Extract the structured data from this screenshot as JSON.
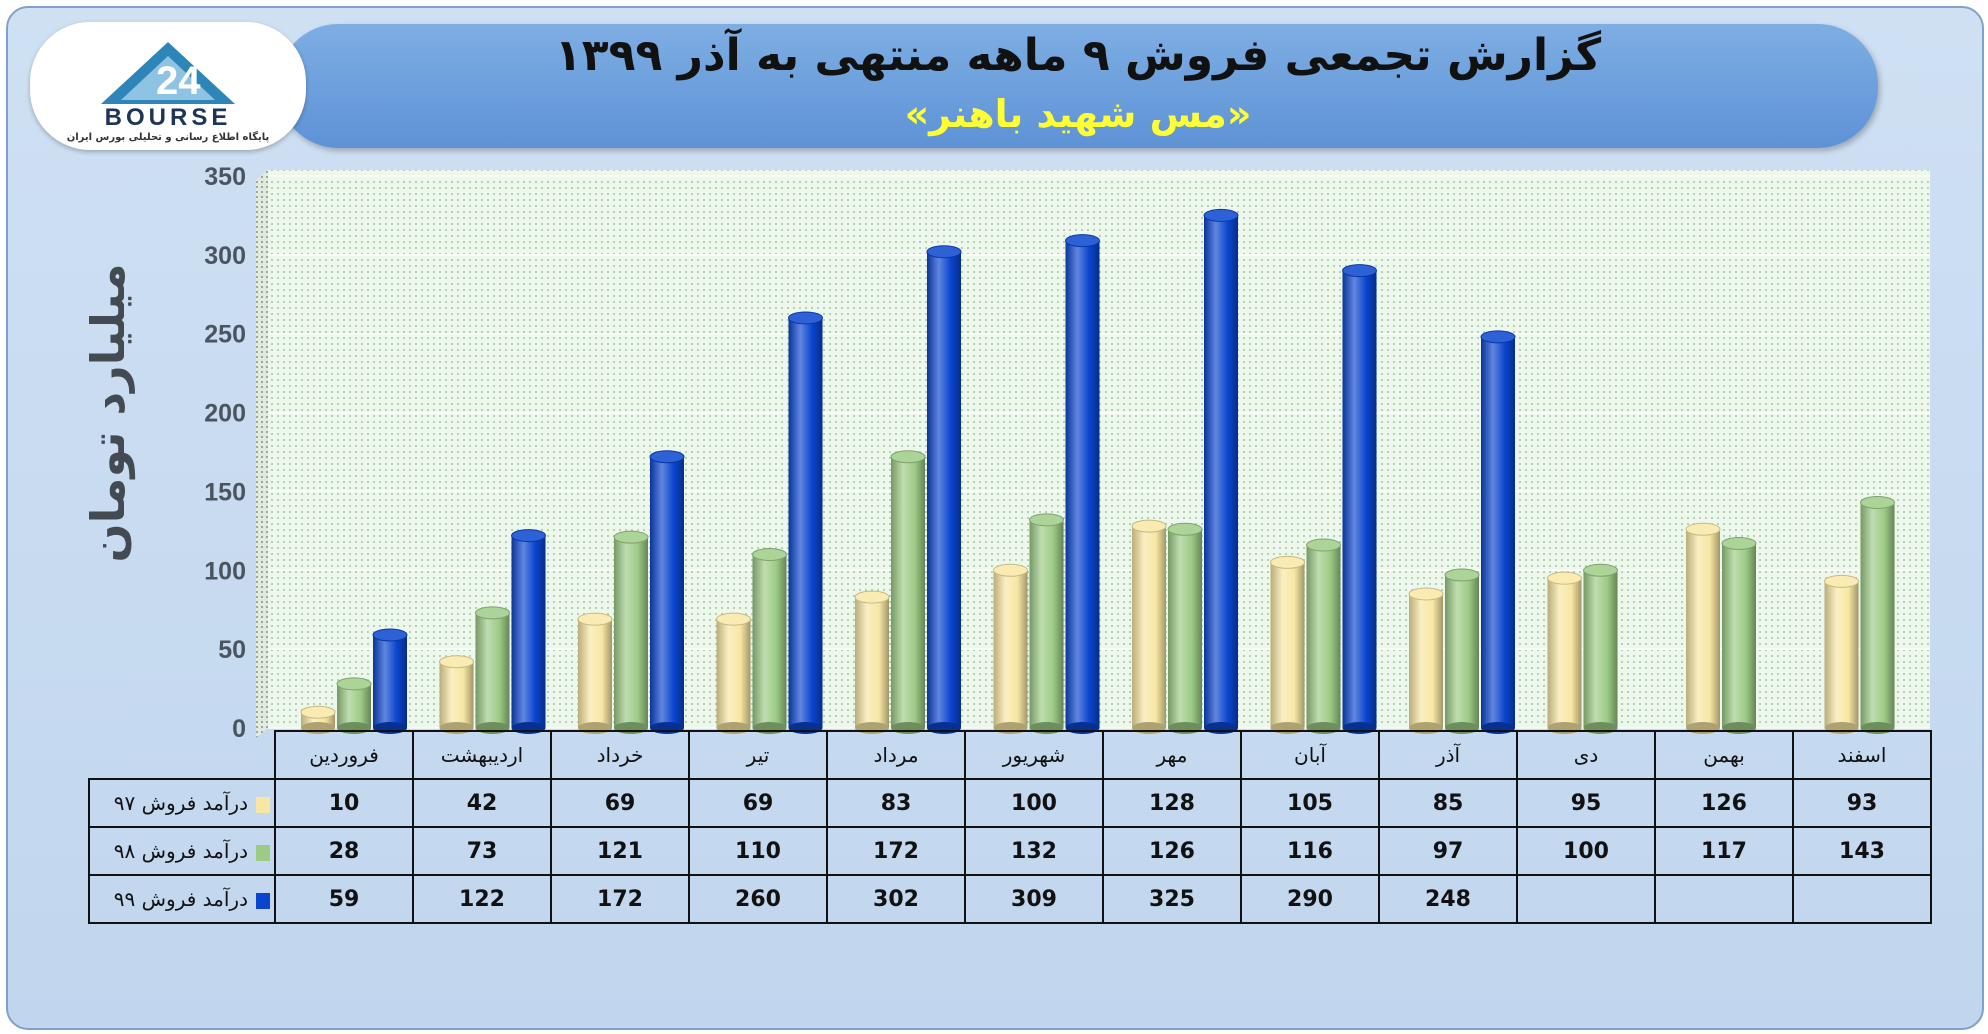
{
  "header": {
    "title": "گزارش تجمعی فروش ۹ ماهه منتهی به آذر ۱۳۹۹",
    "subtitle": "«مس شهید باهنر»"
  },
  "logo": {
    "name": "BOURSE",
    "tagline": "پایگاه اطلاع رسانی و تحلیلی بورس ایران"
  },
  "colors": {
    "series_97": "#f8e7a3",
    "series_98": "#9dcb86",
    "series_99": "#0a45cf",
    "plot_background": "#eaf5e8",
    "title_banner": "#6ea2de",
    "subtitle_text": "#ffff33"
  },
  "chart_data": {
    "type": "bar",
    "title": "گزارش تجمعی فروش ۹ ماهه منتهی به آذر ۱۳۹۹",
    "subtitle": "«مس شهید باهنر»",
    "ylabel": "میلیارد تومان",
    "xlabel": "",
    "ylim": [
      0,
      350
    ],
    "yticks": [
      0,
      50,
      100,
      150,
      200,
      250,
      300,
      350
    ],
    "grid": true,
    "style": "3d-cylinders",
    "categories": [
      "فروردین",
      "اردیبهشت",
      "خرداد",
      "تیر",
      "مرداد",
      "شهریور",
      "مهر",
      "آبان",
      "آذر",
      "دی",
      "بهمن",
      "اسفند"
    ],
    "series": [
      {
        "name": "درآمد فروش ۹۷",
        "color": "#f8e7a3",
        "values": [
          10,
          42,
          69,
          69,
          83,
          100,
          128,
          105,
          85,
          95,
          126,
          93
        ]
      },
      {
        "name": "درآمد فروش ۹۸",
        "color": "#9dcb86",
        "values": [
          28,
          73,
          121,
          110,
          172,
          132,
          126,
          116,
          97,
          100,
          117,
          143
        ]
      },
      {
        "name": "درآمد فروش ۹۹",
        "color": "#0a45cf",
        "values": [
          59,
          122,
          172,
          260,
          302,
          309,
          325,
          290,
          248,
          null,
          null,
          null
        ]
      }
    ]
  }
}
